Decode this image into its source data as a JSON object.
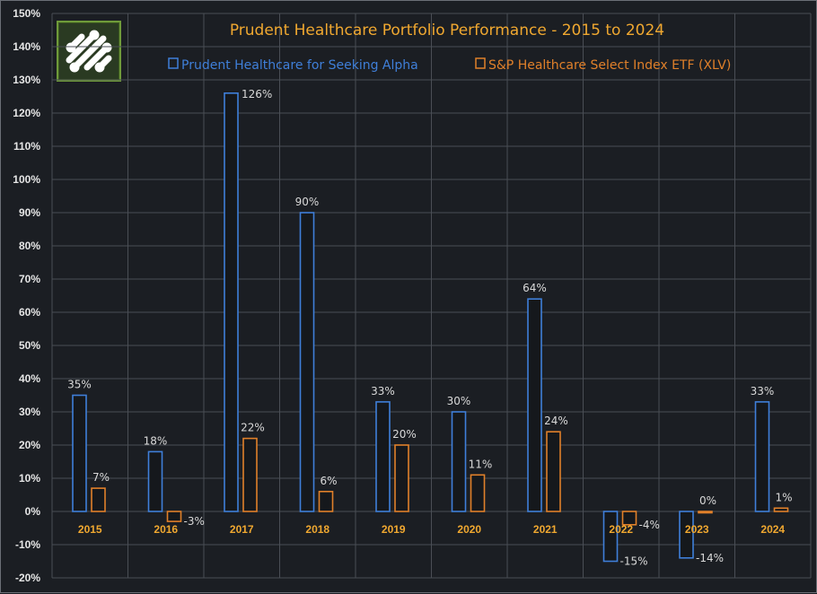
{
  "chart_data": {
    "type": "bar",
    "title": "Prudent Healthcare Portfolio Performance - 2015 to 2024",
    "categories": [
      "2015",
      "2016",
      "2017",
      "2018",
      "2019",
      "2020",
      "2021",
      "2022",
      "2023",
      "2024"
    ],
    "series": [
      {
        "name": "Prudent Healthcare for Seeking Alpha",
        "color": "#3f7fd9",
        "values": [
          35,
          18,
          126,
          90,
          33,
          30,
          64,
          -15,
          -14,
          33
        ],
        "labels": [
          "35%",
          "18%",
          "126%",
          "90%",
          "33%",
          "30%",
          "64%",
          "-15%",
          "-14%",
          "33%"
        ]
      },
      {
        "name": "S&P Healthcare Select Index ETF (XLV)",
        "color": "#e0802a",
        "values": [
          7,
          -3,
          22,
          6,
          20,
          11,
          24,
          -4,
          0,
          1
        ],
        "labels": [
          "7%",
          "-3%",
          "22%",
          "6%",
          "20%",
          "11%",
          "24%",
          "-4%",
          "0%",
          "1%"
        ]
      }
    ],
    "ylim": [
      -20,
      150
    ],
    "ytick_step": 10,
    "ytick_labels": [
      "-20%",
      "-10%",
      "0%",
      "10%",
      "20%",
      "30%",
      "40%",
      "50%",
      "60%",
      "70%",
      "80%",
      "90%",
      "100%",
      "110%",
      "120%",
      "130%",
      "140%",
      "150%"
    ],
    "xlabel": "",
    "ylabel": "",
    "grid": true,
    "legend_position": "top"
  },
  "colors": {
    "background": "#1b1e23",
    "grid": "#4a4e55",
    "title": "#f0a830",
    "axis_category_text": "#f0a830",
    "axis_value_text": "#e6e6e6"
  },
  "logo": {
    "icon": "molecule-logo-icon"
  }
}
